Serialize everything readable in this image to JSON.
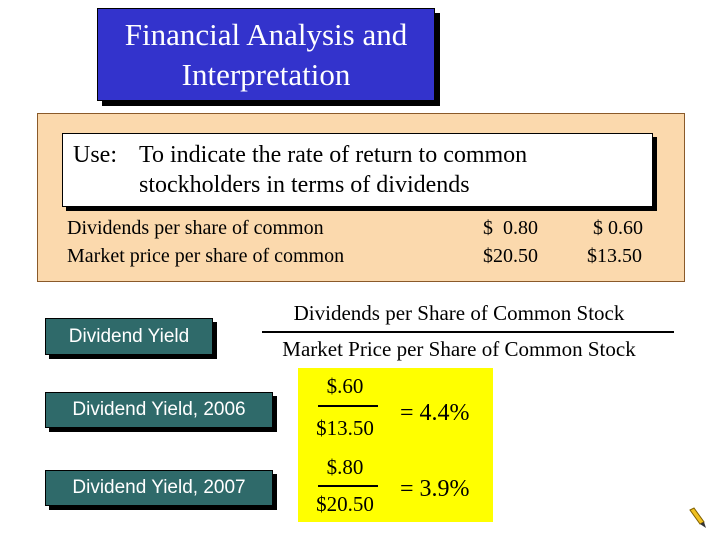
{
  "title": {
    "lines": [
      "Financial Analysis and",
      "Interpretation"
    ]
  },
  "use_box": {
    "label": "Use:",
    "lines": [
      "To indicate the rate of return to common",
      "stockholders in terms of dividends"
    ]
  },
  "table": {
    "rows": [
      [
        "Dividends per share of common",
        "$  0.80",
        "$ 0.60"
      ],
      [
        "Market price per share of common",
        "$20.50",
        "$13.50"
      ]
    ]
  },
  "formula": {
    "label": "Dividend Yield",
    "numerator": "Dividends per Share of Common Stock",
    "denominator": "Market Price per Share of Common Stock"
  },
  "results": [
    {
      "label": "Dividend Yield, 2006",
      "numerator": "$.60",
      "denominator": "$13.50",
      "result": "= 4.4%"
    },
    {
      "label": "Dividend Yield, 2007",
      "numerator": "$.80",
      "denominator": "$20.50",
      "result": "= 3.9%"
    }
  ]
}
